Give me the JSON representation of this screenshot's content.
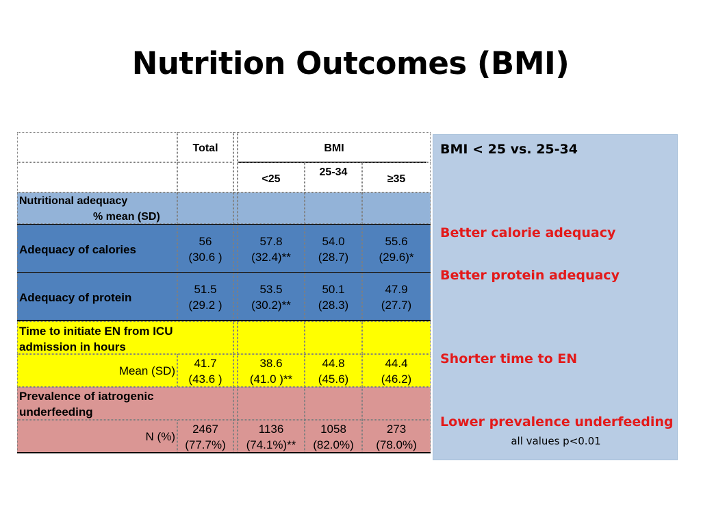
{
  "title": "Nutrition Outcomes (BMI)",
  "table": {
    "header": {
      "total": "Total",
      "bmi": "BMI",
      "lt25": "<25",
      "mid": "25-34",
      "ge35": "≥35"
    },
    "section_nutritional": {
      "line1": "Nutritional adequacy",
      "line2": "% mean (SD)"
    },
    "calories": {
      "label": "Adequacy of calories",
      "cells": [
        {
          "value": "56",
          "sd": "(30.6 )"
        },
        {
          "value": "57.8",
          "sd": "(32.4)**"
        },
        {
          "value": "54.0",
          "sd": "(28.7)"
        },
        {
          "value": "55.6",
          "sd": "(29.6)*"
        }
      ]
    },
    "protein": {
      "label": "Adequacy of protein",
      "cells": [
        {
          "value": "51.5",
          "sd": "(29.2 )"
        },
        {
          "value": "53.5",
          "sd": "(30.2)**"
        },
        {
          "value": "50.1",
          "sd": "(28.3)"
        },
        {
          "value": "47.9",
          "sd": "(27.7)"
        }
      ]
    },
    "time_to_en": {
      "label_line1": "Time to initiate EN from ICU",
      "label_line2": "admission in hours",
      "sub_label": "Mean (SD)",
      "cells": [
        {
          "value": "41.7",
          "sd": "(43.6 )"
        },
        {
          "value": "38.6",
          "sd": "(41.0 )**"
        },
        {
          "value": "44.8",
          "sd": "(45.6)"
        },
        {
          "value": "44.4",
          "sd": "(46.2)"
        }
      ]
    },
    "underfeeding": {
      "label_line1": "Prevalence of iatrogenic",
      "label_line2": "underfeeding",
      "sub_label": "N (%)",
      "cells": [
        {
          "value": "2467",
          "sd": "(77.7%)"
        },
        {
          "value": "1136",
          "sd": "(74.1%)**"
        },
        {
          "value": "1058",
          "sd": "(82.0%)"
        },
        {
          "value": "273",
          "sd": "(78.0%)"
        }
      ]
    }
  },
  "panel": {
    "heading": "BMI < 25 vs. 25-34",
    "finding1": "Better calorie adequacy",
    "finding2": "Better protein adequacy",
    "finding3": "Shorter time to EN",
    "finding4": "Lower prevalence underfeeding",
    "note": "all values p<0.01"
  },
  "colors": {
    "header_blue": "#93b3d8",
    "row_blue": "#4f81bd",
    "highlight_yellow": "#ffff00",
    "highlight_pink": "#da9694",
    "panel_bg": "#b8cce4",
    "finding_red": "#e31a1a"
  }
}
